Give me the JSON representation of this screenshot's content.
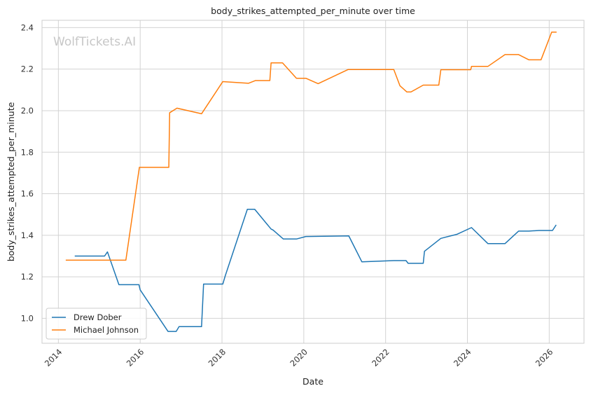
{
  "watermark": "WolfTickets.AI",
  "chart_data": {
    "type": "line",
    "title": "body_strikes_attempted_per_minute over time",
    "xlabel": "Date",
    "ylabel": "body_strikes_attempted_per_minute",
    "xlim": [
      2013.6,
      2026.85
    ],
    "ylim": [
      0.88,
      2.435
    ],
    "x_ticks": [
      2014,
      2016,
      2018,
      2020,
      2022,
      2024,
      2026
    ],
    "x_tick_labels": [
      "2014",
      "2016",
      "2018",
      "2020",
      "2022",
      "2024",
      "2026"
    ],
    "y_ticks": [
      1.0,
      1.2,
      1.4,
      1.6,
      1.8,
      2.0,
      2.2,
      2.4
    ],
    "y_tick_labels": [
      "1.0",
      "1.2",
      "1.4",
      "1.6",
      "1.8",
      "2.0",
      "2.2",
      "2.4"
    ],
    "grid": true,
    "legend_position": "lower-left",
    "series": [
      {
        "name": "Drew Dober",
        "color": "#1f77b4",
        "x": [
          2014.4,
          2015.13,
          2015.2,
          2015.48,
          2015.97,
          2016.0,
          2016.68,
          2016.88,
          2016.95,
          2017.5,
          2017.55,
          2018.02,
          2018.08,
          2018.62,
          2018.8,
          2019.2,
          2019.25,
          2019.5,
          2019.82,
          2020.05,
          2021.1,
          2021.42,
          2022.2,
          2022.5,
          2022.55,
          2022.92,
          2022.95,
          2023.35,
          2023.75,
          2024.1,
          2024.5,
          2024.92,
          2025.25,
          2025.5,
          2025.75,
          2026.08,
          2026.17
        ],
        "values": [
          1.3,
          1.3,
          1.32,
          1.162,
          1.162,
          1.137,
          0.937,
          0.937,
          0.96,
          0.96,
          1.165,
          1.165,
          1.205,
          1.525,
          1.525,
          1.43,
          1.425,
          1.382,
          1.382,
          1.394,
          1.397,
          1.272,
          1.278,
          1.278,
          1.265,
          1.265,
          1.323,
          1.385,
          1.405,
          1.437,
          1.36,
          1.36,
          1.42,
          1.42,
          1.423,
          1.423,
          1.45
        ]
      },
      {
        "name": "Michael Johnson",
        "color": "#ff7f0e",
        "x": [
          2014.18,
          2015.65,
          2015.98,
          2016.7,
          2016.72,
          2016.9,
          2017.5,
          2018.02,
          2018.65,
          2018.82,
          2019.17,
          2019.2,
          2019.48,
          2019.82,
          2020.05,
          2020.35,
          2021.08,
          2022.2,
          2022.35,
          2022.52,
          2022.62,
          2022.92,
          2023.3,
          2023.35,
          2024.08,
          2024.1,
          2024.5,
          2024.92,
          2025.25,
          2025.5,
          2025.8,
          2026.06,
          2026.18
        ],
        "values": [
          1.28,
          1.28,
          1.727,
          1.727,
          1.99,
          2.012,
          1.985,
          2.14,
          2.132,
          2.145,
          2.145,
          2.23,
          2.23,
          2.156,
          2.156,
          2.13,
          2.198,
          2.198,
          2.12,
          2.09,
          2.09,
          2.123,
          2.123,
          2.197,
          2.197,
          2.213,
          2.213,
          2.27,
          2.27,
          2.245,
          2.245,
          2.378,
          2.378
        ]
      }
    ]
  }
}
